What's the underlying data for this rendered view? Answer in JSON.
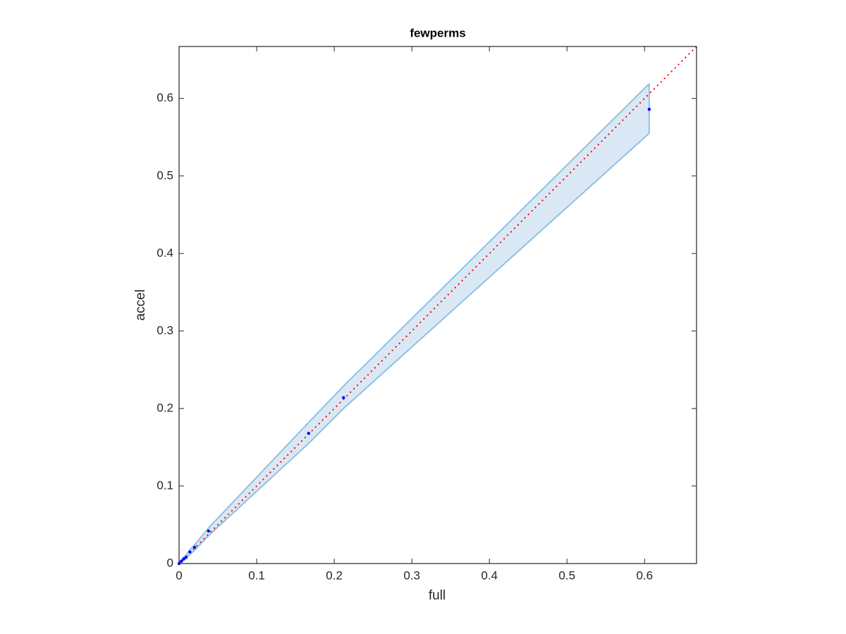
{
  "chart_data": {
    "type": "scatter",
    "title": "fewperms",
    "x_label": "full",
    "y_label": "accel",
    "x": [
      0,
      0.003,
      0.006,
      0.009,
      0.014,
      0.02,
      0.038,
      0.167,
      0.212,
      0.606
    ],
    "series": [
      {
        "color": "#0000ff",
        "values": [
          0,
          0.003,
          0.006,
          0.008,
          0.015,
          0.021,
          0.042,
          0.168,
          0.214,
          0.586
        ]
      }
    ],
    "band": {
      "color": "#d9e8f4",
      "edge_color": "#8fc1e3",
      "upper": [
        0.001,
        0.005,
        0.008,
        0.011,
        0.018,
        0.024,
        0.046,
        0.182,
        0.229,
        0.619
      ],
      "lower": [
        0,
        0.002,
        0.004,
        0.007,
        0.012,
        0.017,
        0.036,
        0.155,
        0.2,
        0.555
      ]
    },
    "reference_line": {
      "color": "#ff0000",
      "x": [
        0,
        0.667
      ],
      "values": [
        0,
        0.667
      ]
    },
    "xlim": [
      0,
      0.667
    ],
    "ylim": [
      0,
      0.667
    ],
    "xticks": [
      0,
      0.1,
      0.2,
      0.3,
      0.4,
      0.5,
      0.6
    ],
    "yticks": [
      0,
      0.1,
      0.2,
      0.3,
      0.4,
      0.5,
      0.6
    ]
  }
}
